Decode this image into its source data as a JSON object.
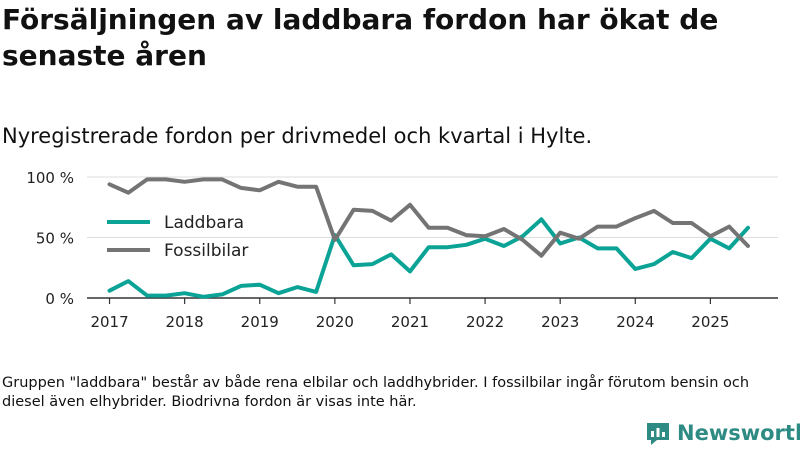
{
  "title": "Försäljningen av laddbara fordon har ökat de senaste åren",
  "subtitle": "Nyregistrerade fordon per drivmedel och kvartal i Hylte.",
  "note": "Gruppen \"laddbara\" består av både rena elbilar och laddhybrider. I fossilbilar ingår förutom bensin och diesel även elhybrider. Biodrivna fordon är visas inte här.",
  "brand": {
    "name": "Newsworthy",
    "icon": "newsworthy-logo-icon",
    "color": "#2e8b84"
  },
  "chart_data": {
    "type": "line",
    "title": "Försäljningen av laddbara fordon har ökat de senaste åren",
    "xlabel": "",
    "ylabel": "",
    "x_range": [
      2017,
      2025.75
    ],
    "ylim": [
      0,
      100
    ],
    "y_ticks": [
      0,
      50,
      100
    ],
    "y_tick_labels": [
      "0 %",
      "50 %",
      "100 %"
    ],
    "x_ticks": [
      2017,
      2018,
      2019,
      2020,
      2021,
      2022,
      2023,
      2024,
      2025
    ],
    "x_tick_labels": [
      "2017",
      "2018",
      "2019",
      "2020",
      "2021",
      "2022",
      "2023",
      "2024",
      "2025"
    ],
    "grid": true,
    "legend_position": "left",
    "x": [
      2017.0,
      2017.25,
      2017.5,
      2017.75,
      2018.0,
      2018.25,
      2018.5,
      2018.75,
      2019.0,
      2019.25,
      2019.5,
      2019.75,
      2020.0,
      2020.25,
      2020.5,
      2020.75,
      2021.0,
      2021.25,
      2021.5,
      2021.75,
      2022.0,
      2022.25,
      2022.5,
      2022.75,
      2023.0,
      2023.25,
      2023.5,
      2023.75,
      2024.0,
      2024.25,
      2024.5,
      2024.75,
      2025.0,
      2025.25,
      2025.5
    ],
    "series": [
      {
        "name": "Laddbara",
        "color": "#0aa396",
        "values": [
          6,
          14,
          2,
          2,
          4,
          1,
          3,
          10,
          11,
          4,
          9,
          5,
          52,
          27,
          28,
          36,
          22,
          42,
          42,
          44,
          49,
          43,
          51,
          65,
          45,
          50,
          41,
          41,
          24,
          28,
          38,
          33,
          49,
          41,
          58
        ]
      },
      {
        "name": "Fossilbilar",
        "color": "#747474",
        "values": [
          94,
          87,
          98,
          98,
          96,
          98,
          98,
          91,
          89,
          96,
          92,
          92,
          48,
          73,
          72,
          64,
          77,
          58,
          58,
          52,
          51,
          57,
          48,
          35,
          54,
          49,
          59,
          59,
          66,
          72,
          62,
          62,
          51,
          59,
          43
        ]
      }
    ]
  }
}
